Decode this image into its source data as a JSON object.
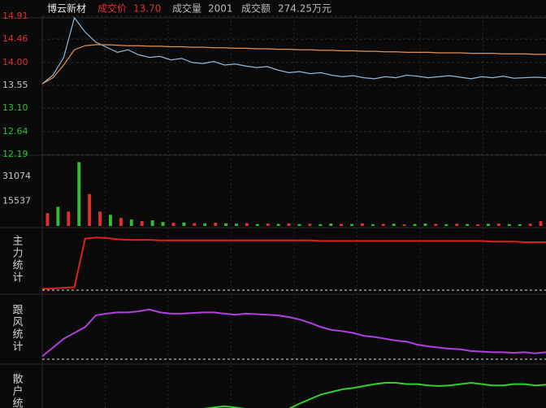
{
  "header": {
    "name": "博云新材",
    "price_label": "成交价",
    "price": "13.70",
    "volume_label": "成交量",
    "volume": 2001,
    "amount_label": "成交额",
    "amount": "274.25万元"
  },
  "chart_data": [
    {
      "type": "line",
      "ylim": [
        12.19,
        14.91
      ],
      "yticks": [
        14.91,
        14.46,
        {
          "value": 14,
          "label": "14.00"
        },
        13.55,
        {
          "value": 13.1,
          "label": "13.10"
        },
        12.64,
        12.19
      ],
      "ytick_colors": [
        "#e03030",
        "#e03030",
        "#e03030",
        "#c8c8c8",
        "#30c030",
        "#30c030",
        "#30c030"
      ],
      "grid": true,
      "series": [
        {
          "color": "#8fb8dc",
          "values": [
            13.58,
            13.75,
            14.1,
            14.88,
            14.6,
            14.4,
            14.3,
            14.2,
            14.25,
            14.15,
            14.1,
            14.12,
            14.05,
            14.08,
            14.0,
            13.98,
            14.02,
            13.95,
            13.97,
            13.93,
            13.9,
            13.92,
            13.85,
            13.8,
            13.82,
            13.78,
            13.8,
            13.75,
            13.72,
            13.74,
            13.7,
            13.68,
            13.72,
            13.7,
            13.75,
            13.73,
            13.7,
            13.72,
            13.74,
            13.71,
            13.68,
            13.72,
            13.7,
            13.73,
            13.69,
            13.7,
            13.71,
            13.7
          ]
        },
        {
          "color": "#e8904a",
          "values": [
            13.58,
            13.7,
            13.95,
            14.25,
            14.33,
            14.35,
            14.35,
            14.34,
            14.33,
            14.33,
            14.32,
            14.32,
            14.31,
            14.31,
            14.3,
            14.3,
            14.29,
            14.29,
            14.28,
            14.28,
            14.27,
            14.27,
            14.26,
            14.26,
            14.25,
            14.25,
            14.24,
            14.24,
            14.23,
            14.23,
            14.22,
            14.22,
            14.21,
            14.21,
            14.2,
            14.2,
            14.2,
            14.19,
            14.19,
            14.19,
            14.18,
            14.18,
            14.18,
            14.17,
            14.17,
            14.17,
            14.16,
            14.16
          ]
        }
      ]
    },
    {
      "type": "bar",
      "ylim": [
        0,
        43800
      ],
      "yticks": [
        31074,
        15537
      ],
      "ytick_color": "#c8c8c8",
      "values": [
        8000,
        12000,
        9000,
        40000,
        20000,
        9000,
        7000,
        5000,
        4000,
        3000,
        3500,
        2500,
        2000,
        2200,
        1800,
        1500,
        2000,
        1600,
        1400,
        1800,
        1200,
        1500,
        1300,
        1600,
        1200,
        1400,
        1100,
        1500,
        1300,
        1200,
        1600,
        1100,
        1300,
        1400,
        1000,
        1200,
        1500,
        1300,
        1100,
        1400,
        1200,
        1000,
        1300,
        1500,
        1200,
        1100,
        1400,
        3000
      ],
      "colors": [
        "#e03030",
        "#30c030",
        "#e03030",
        "#30c030",
        "#e03030",
        "#e03030",
        "#30c030",
        "#e03030",
        "#30c030",
        "#e03030",
        "#30c030",
        "#30c030",
        "#e03030",
        "#30c030",
        "#e03030",
        "#30c030",
        "#e03030",
        "#30c030",
        "#30c030",
        "#e03030",
        "#30c030",
        "#e03030",
        "#30c030",
        "#e03030",
        "#30c030",
        "#e03030",
        "#30c030",
        "#30c030",
        "#e03030",
        "#30c030",
        "#e03030",
        "#30c030",
        "#e03030",
        "#30c030",
        "#e03030",
        "#30c030",
        "#30c030",
        "#e03030",
        "#30c030",
        "#e03030",
        "#30c030",
        "#e03030",
        "#30c030",
        "#e03030",
        "#30c030",
        "#30c030",
        "#e03030",
        "#e03030"
      ]
    },
    {
      "type": "line",
      "label": "主力统计",
      "ylim": [
        0,
        100
      ],
      "series": [
        {
          "color": "#e02020",
          "values": [
            2,
            3,
            4,
            5,
            88,
            90,
            89,
            87,
            86,
            86,
            86,
            85,
            85,
            85,
            85,
            85,
            85,
            85,
            85,
            85,
            85,
            85,
            85,
            85,
            85,
            85,
            84,
            84,
            84,
            84,
            84,
            84,
            84,
            84,
            84,
            84,
            84,
            84,
            84,
            84,
            84,
            84,
            83,
            83,
            83,
            82,
            82,
            82
          ]
        }
      ]
    },
    {
      "type": "line",
      "label": "跟风统计",
      "ylim": [
        0,
        100
      ],
      "series": [
        {
          "color": "#b040e0",
          "values": [
            5,
            20,
            35,
            45,
            55,
            75,
            78,
            80,
            80,
            82,
            85,
            80,
            78,
            78,
            79,
            80,
            80,
            78,
            76,
            78,
            77,
            76,
            75,
            72,
            68,
            62,
            55,
            50,
            48,
            45,
            40,
            38,
            35,
            32,
            30,
            25,
            22,
            20,
            18,
            17,
            14,
            13,
            12,
            12,
            11,
            12,
            10,
            12
          ]
        }
      ]
    },
    {
      "type": "line",
      "label": "散户统计",
      "ylim": [
        0,
        100
      ],
      "series": [
        {
          "color": "#30d030",
          "values": [
            10,
            12,
            14,
            16,
            18,
            20,
            22,
            25,
            28,
            30,
            32,
            34,
            35,
            36,
            38,
            40,
            42,
            44,
            42,
            40,
            38,
            36,
            35,
            40,
            48,
            55,
            62,
            66,
            70,
            72,
            75,
            78,
            80,
            80,
            78,
            78,
            76,
            75,
            76,
            78,
            80,
            78,
            76,
            76,
            78,
            78,
            76,
            77
          ]
        }
      ]
    }
  ]
}
